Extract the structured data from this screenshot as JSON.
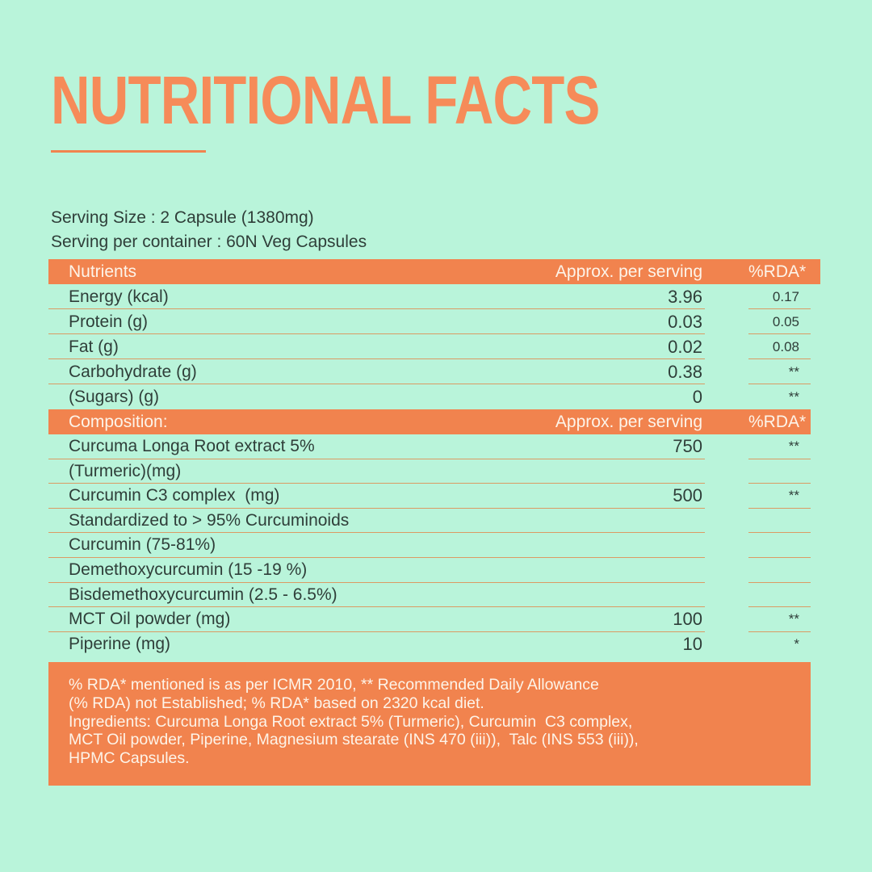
{
  "page": {
    "title": "NUTRITIONAL FACTS",
    "serving": {
      "line1": "Serving Size : 2 Capsule (1380mg)",
      "line2": "Serving per container : 60N Veg Capsules"
    }
  },
  "colors": {
    "background": "#b9f4da",
    "accent_orange": "#f1834e",
    "title_orange": "#f68b59",
    "rule_orange": "#db9a64",
    "text_dark": "#2f3e39",
    "text_on_orange": "#fdf4e9"
  },
  "table": {
    "sections": [
      {
        "header": {
          "label": "Nutrients",
          "col2": "Approx. per serving",
          "col3": "%RDA*"
        },
        "rows": [
          {
            "label": "Energy (kcal)",
            "value": "3.96",
            "rda": "0.17"
          },
          {
            "label": "Protein (g)",
            "value": "0.03",
            "rda": "0.05"
          },
          {
            "label": "Fat (g)",
            "value": "0.02",
            "rda": "0.08"
          },
          {
            "label": "Carbohydrate (g)",
            "value": "0.38",
            "rda": "**"
          },
          {
            "label": "(Sugars) (g)",
            "value": "0",
            "rda": "**"
          }
        ]
      },
      {
        "header": {
          "label": "Composition:",
          "col2": "Approx. per serving",
          "col3": "%RDA*"
        },
        "rows": [
          {
            "label": "Curcuma Longa Root extract 5%",
            "value": "750",
            "rda": "**"
          },
          {
            "label": "(Turmeric)(mg)",
            "value": "",
            "rda": ""
          },
          {
            "label": "Curcumin C3 complex  (mg)",
            "value": "500",
            "rda": "**"
          },
          {
            "label": "Standardized to > 95% Curcuminoids",
            "value": "",
            "rda": ""
          },
          {
            "label": "Curcumin (75-81%)",
            "value": "",
            "rda": ""
          },
          {
            "label": "Demethoxycurcumin (15 -19 %)",
            "value": "",
            "rda": ""
          },
          {
            "label": "Bisdemethoxycurcumin (2.5 - 6.5%)",
            "value": "",
            "rda": ""
          },
          {
            "label": "MCT Oil powder (mg)",
            "value": "100",
            "rda": "**"
          },
          {
            "label": "Piperine (mg)",
            "value": "10",
            "rda": "*"
          }
        ]
      }
    ]
  },
  "footnote": {
    "lines": [
      "% RDA* mentioned is as per ICMR 2010, ** Recommended Daily Allowance",
      "(% RDA) not Established; % RDA* based on 2320 kcal diet.",
      "Ingredients: Curcuma Longa Root extract 5% (Turmeric), Curcumin  C3 complex,",
      "MCT Oil powder, Piperine, Magnesium stearate (INS 470 (iii)),  Talc (INS 553 (iii)),",
      "HPMC Capsules."
    ]
  }
}
